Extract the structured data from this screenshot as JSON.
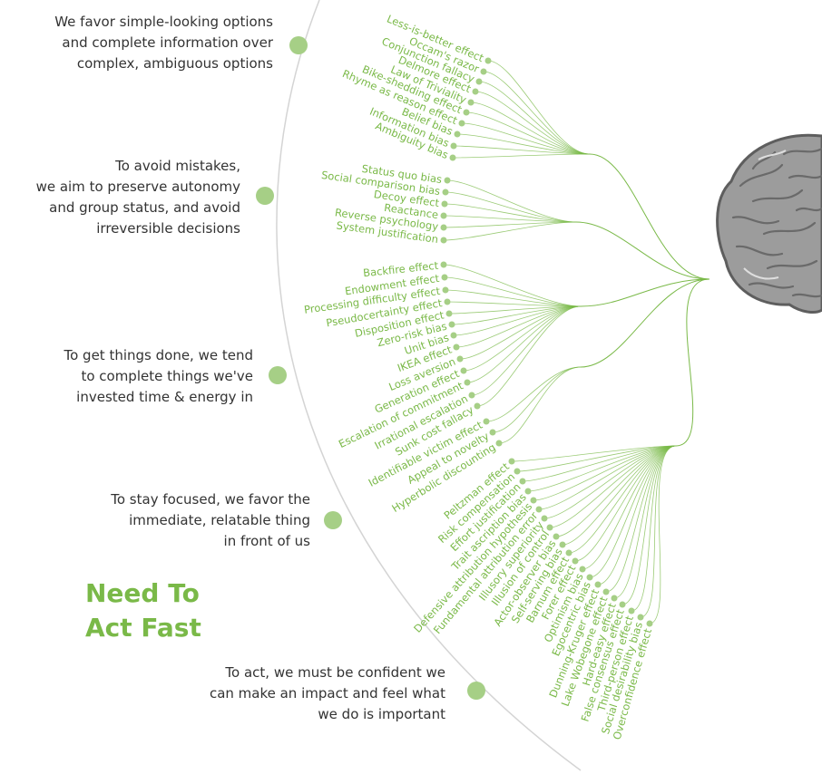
{
  "title": [
    "Need To",
    "Act Fast"
  ],
  "colors": {
    "accent": "#7ab948",
    "dot": "#a6cf86",
    "arc": "#d4d4d4",
    "text": "#333333"
  },
  "icons": {
    "brain": "brain-icon"
  },
  "groups": [
    {
      "id": "simple",
      "text": [
        "We favor simple-looking options",
        "and complete information over",
        "complex, ambiguous options"
      ],
      "biases": [
        "Less-is-better effect",
        "Occam's razor",
        "Conjunction fallacy",
        "Delmore effect",
        "Law of Triviality",
        "Bike-shedding effect",
        "Rhyme as reason effect",
        "Belief bias",
        "Information bias",
        "Ambiguity bias"
      ]
    },
    {
      "id": "autonomy",
      "text": [
        "To avoid mistakes,",
        "we aim to preserve autonomy",
        "and group status, and avoid",
        "irreversible decisions"
      ],
      "biases": [
        "Status quo bias",
        "Social comparison bias",
        "Decoy effect",
        "Reactance",
        "Reverse psychology",
        "System justification"
      ]
    },
    {
      "id": "complete",
      "text": [
        "To get things done, we tend",
        "to complete things we've",
        "invested time & energy in"
      ],
      "biases": [
        "Backfire effect",
        "Endowment effect",
        "Processing difficulty effect",
        "Pseudocertainty effect",
        "Disposition effect",
        "Zero-risk bias",
        "Unit bias",
        "IKEA effect",
        "Loss aversion",
        "Generation effect",
        "Escalation of commitment",
        "Irrational escalation",
        "Sunk cost fallacy"
      ]
    },
    {
      "id": "focused",
      "text": [
        "To stay focused, we favor the",
        "immediate, relatable thing",
        "in front of us"
      ],
      "biases": [
        "Identifiable victim effect",
        "Appeal to novelty",
        "Hyperbolic discounting"
      ]
    },
    {
      "id": "confident",
      "text": [
        "To act, we must be confident we",
        "can make an impact and feel what",
        "we do is important"
      ],
      "biases": [
        "Peltzman effect",
        "Risk compensation",
        "Effort justification",
        "Trait ascription bias",
        "Defensive attribution hypothesis",
        "Fundamental attribution error",
        "Illusory superiority",
        "Illusion of control",
        "Actor-observer bias",
        "Self-serving bias",
        "Barnum effect",
        "Forer effect",
        "Optimism bias",
        "Egocentric bias",
        "Dunning-Kruger effect",
        "Lake Wobegone effect",
        "Hard-easy effect",
        "False consensus effect",
        "Third-person effect",
        "Social desirability bias",
        "Overconfidence effect"
      ]
    }
  ]
}
